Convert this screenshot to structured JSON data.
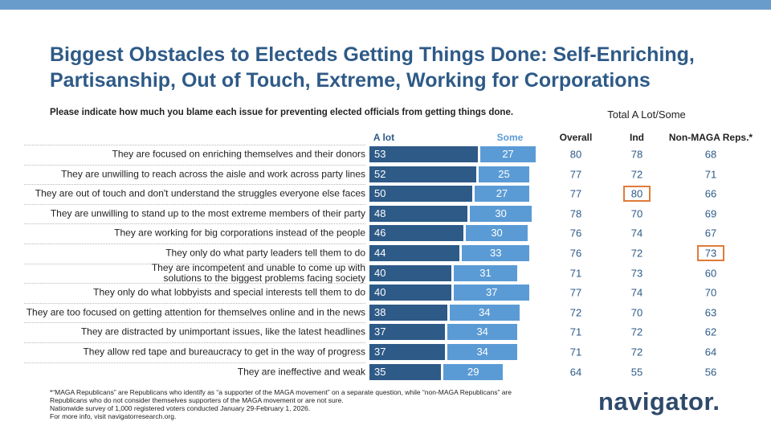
{
  "chart_data": {
    "type": "stacked-bar",
    "title": [
      "Biggest Obstacles to Electeds Getting Things Done: Self-Enriching,",
      "Partisanship, Out of Touch, Extreme, Working for Corporations"
    ],
    "subtitle": "Please indicate how much you blame each issue for preventing elected officials from getting things done.",
    "categories": [
      "They are focused on enriching themselves and their donors",
      "They are unwilling to reach across the aisle and work across party lines",
      "They are out of touch and don't understand the struggles everyone else faces",
      "They are unwilling to stand up to the most extreme members of their party",
      "They are working for big corporations instead of the people",
      "They only do what party leaders tell them to do",
      "They are incompetent and unable to come up with\nsolutions to the biggest problems facing society",
      "They only do what lobbyists and special interests tell them to do",
      "They are too focused on getting attention for themselves online and in the news",
      "They are distracted by unimportant issues, like the latest headlines",
      "They allow red tape and bureaucracy to get in the way of progress",
      "They are ineffective and weak"
    ],
    "series": [
      {
        "name": "A lot",
        "color": "#2e5a87",
        "values": [
          53,
          52,
          50,
          48,
          46,
          44,
          40,
          40,
          38,
          37,
          37,
          35
        ]
      },
      {
        "name": "Some",
        "color": "#5b9bd5",
        "values": [
          27,
          25,
          27,
          30,
          30,
          33,
          31,
          37,
          34,
          34,
          34,
          29
        ]
      }
    ]
  },
  "table": {
    "title": "Total A Lot/Some",
    "columns": [
      "Overall",
      "Ind",
      "Non-MAGA Reps.*"
    ],
    "rows": [
      [
        80,
        78,
        68
      ],
      [
        77,
        72,
        71
      ],
      [
        77,
        80,
        66
      ],
      [
        78,
        70,
        69
      ],
      [
        76,
        74,
        67
      ],
      [
        76,
        72,
        73
      ],
      [
        71,
        73,
        60
      ],
      [
        77,
        74,
        70
      ],
      [
        72,
        70,
        63
      ],
      [
        71,
        72,
        62
      ],
      [
        71,
        72,
        64
      ],
      [
        64,
        55,
        56
      ]
    ],
    "highlight_color": "#e07b39",
    "highlights": [
      {
        "row": 2,
        "column": 1
      },
      {
        "row": 5,
        "column": 2
      }
    ]
  },
  "footnote": [
    "*“MAGA Republicans” are Republicans who identify as “a supporter of the MAGA movement” on a separate question, while “non-MAGA Republicans” are",
    "Republicans who do not consider themselves supporters of the MAGA movement or are not sure.",
    "Nationwide survey of 1,000 registered voters conducted January 29-February 1, 2026.",
    "For more info, visit navigatorresearch.org."
  ],
  "logo": "navigator."
}
